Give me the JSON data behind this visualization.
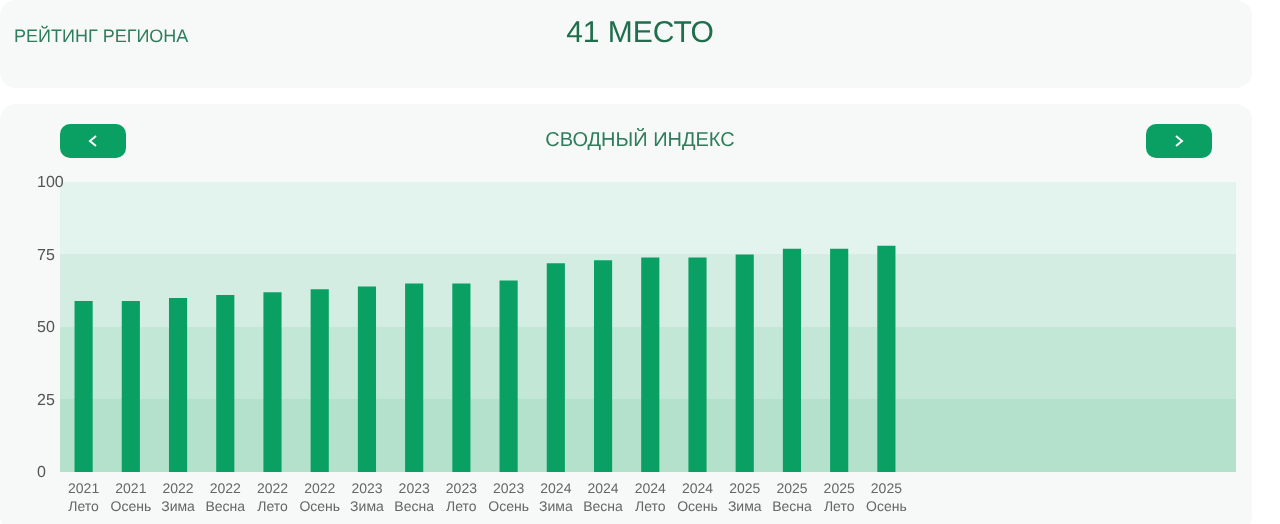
{
  "chart_data": {
    "type": "bar",
    "title": "СВОДНЫЙ ИНДЕКС",
    "annotations": [
      "РЕЙТИНГ РЕГИОНА",
      "41 МЕСТО"
    ],
    "categories": [
      "2021 Лето",
      "2021 Осень",
      "2022 Зима",
      "2022 Весна",
      "2022 Лето",
      "2022 Осень",
      "2023 Зима",
      "2023 Весна",
      "2023 Лето",
      "2023 Осень",
      "2024 Зима",
      "2024 Весна",
      "2024 Лето",
      "2024 Осень",
      "2025 Зима",
      "2025 Весна",
      "2025 Лето",
      "2025 Осень"
    ],
    "values": [
      59,
      59,
      60,
      61,
      62,
      63,
      64,
      65,
      65,
      66,
      72,
      73,
      74,
      74,
      75,
      77,
      77,
      78
    ],
    "color": "#0aa063",
    "ylim": [
      0,
      100
    ],
    "yticks": [
      0,
      25,
      50,
      75,
      100
    ]
  }
}
